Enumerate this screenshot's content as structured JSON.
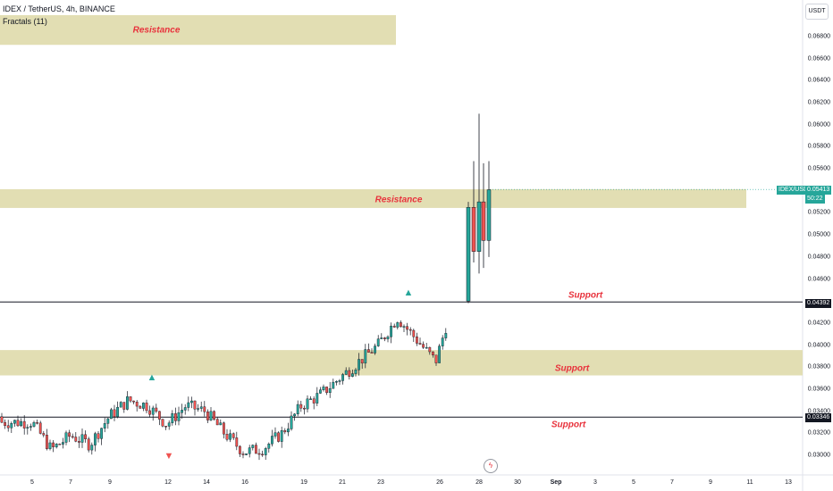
{
  "header": {
    "symbol_line": "IDEX / TetherUS, 4h, BINANCE",
    "indicator": "Fractals (11)"
  },
  "currency_button": "USDT",
  "zones": [
    {
      "label": "Resistance",
      "kind": "resistance",
      "low": 0.06725,
      "high": 0.06995
    },
    {
      "label": "Resistance",
      "kind": "resistance",
      "low": 0.05245,
      "high": 0.05415
    },
    {
      "label": "Support",
      "kind": "support",
      "low": 0.03725,
      "high": 0.03955
    }
  ],
  "lines": [
    {
      "label": "Support",
      "value": 0.04392,
      "badge": "0.04392"
    },
    {
      "label": "Support",
      "value": 0.03346,
      "badge": "0.03346"
    }
  ],
  "price_badge": {
    "symbol": "IDEX/USDT",
    "price": "0.05413",
    "timer": "50:22"
  },
  "y_axis": {
    "ticks": [
      "0.06800",
      "0.06600",
      "0.06400",
      "0.06200",
      "0.06000",
      "0.05800",
      "0.05600",
      "0.05400",
      "0.05200",
      "0.05000",
      "0.04800",
      "0.04600",
      "0.04200",
      "0.04000",
      "0.03800",
      "0.03600",
      "0.03400",
      "0.03200",
      "0.03000"
    ]
  },
  "x_axis": {
    "ticks": [
      "5",
      "7",
      "9",
      "12",
      "14",
      "16",
      "19",
      "21",
      "23",
      "26",
      "28",
      "30",
      "Sep",
      "3",
      "5",
      "7",
      "9",
      "11",
      "13"
    ]
  },
  "fractals": [
    {
      "type": "up",
      "date": "Aug 10"
    },
    {
      "type": "down",
      "date": "Aug 12"
    },
    {
      "type": "up",
      "date": "Aug 24"
    }
  ],
  "colors": {
    "up": "#26a69a",
    "down": "#ef5350",
    "zone": "#e2deb3",
    "label": "#e8323c",
    "line": "#131722"
  },
  "chart_data": {
    "type": "candlestick",
    "symbol": "IDEX / TetherUS",
    "interval": "4h",
    "y_range": [
      0.0295,
      0.0705
    ],
    "anchors": [
      {
        "date": "Aug 5",
        "price": 0.033
      },
      {
        "date": "Aug 6",
        "price": 0.0305
      },
      {
        "date": "Aug 7",
        "price": 0.0318
      },
      {
        "date": "Aug 8",
        "price": 0.031
      },
      {
        "date": "Aug 9",
        "price": 0.0335
      },
      {
        "date": "Aug 10",
        "price": 0.035
      },
      {
        "date": "Aug 11",
        "price": 0.0345
      },
      {
        "date": "Aug 12",
        "price": 0.0328
      },
      {
        "date": "Aug 13",
        "price": 0.0345
      },
      {
        "date": "Aug 14",
        "price": 0.034
      },
      {
        "date": "Aug 15",
        "price": 0.032
      },
      {
        "date": "Aug 16",
        "price": 0.0303
      },
      {
        "date": "Aug 17",
        "price": 0.0306
      },
      {
        "date": "Aug 18",
        "price": 0.032
      },
      {
        "date": "Aug 19",
        "price": 0.0345
      },
      {
        "date": "Aug 20",
        "price": 0.0355
      },
      {
        "date": "Aug 21",
        "price": 0.037
      },
      {
        "date": "Aug 22",
        "price": 0.0385
      },
      {
        "date": "Aug 23",
        "price": 0.04
      },
      {
        "date": "Aug 24",
        "price": 0.0425
      },
      {
        "date": "Aug 25",
        "price": 0.0405
      },
      {
        "date": "Aug 26",
        "price": 0.0385
      },
      {
        "date": "Aug 27",
        "price": 0.0445
      },
      {
        "date": "Aug 28",
        "price": 0.053
      }
    ],
    "final_candles": [
      {
        "date": "Aug 27",
        "open": 0.044,
        "high": 0.053,
        "low": 0.0438,
        "close": 0.0525
      },
      {
        "date": "Aug 27",
        "open": 0.0525,
        "high": 0.0567,
        "low": 0.0475,
        "close": 0.0485
      },
      {
        "date": "Aug 28",
        "open": 0.0485,
        "high": 0.061,
        "low": 0.0465,
        "close": 0.053
      },
      {
        "date": "Aug 28",
        "open": 0.053,
        "high": 0.0565,
        "low": 0.047,
        "close": 0.0495
      },
      {
        "date": "Aug 28",
        "open": 0.0495,
        "high": 0.0567,
        "low": 0.048,
        "close": 0.0541
      }
    ],
    "last_price": 0.05413
  }
}
